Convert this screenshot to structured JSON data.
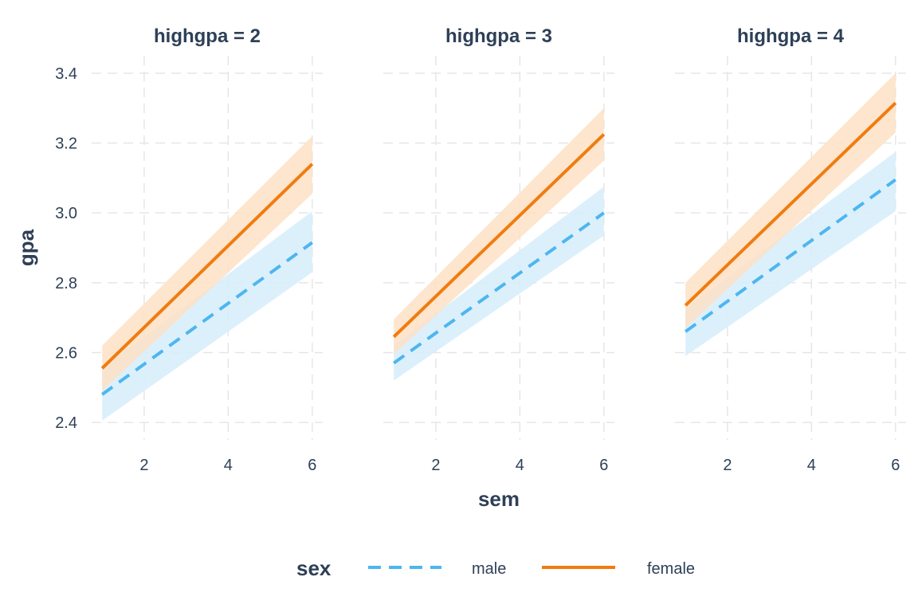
{
  "chart_data": {
    "type": "line",
    "facet_variable": "highgpa",
    "xlabel": "sem",
    "ylabel": "gpa",
    "xlim": [
      0.75,
      6.25
    ],
    "ylim": [
      2.35,
      3.45
    ],
    "x_ticks": [
      2,
      4,
      6
    ],
    "y_ticks": [
      2.4,
      2.6,
      2.8,
      3.0,
      3.2,
      3.4
    ],
    "y_tick_labels": [
      "2.4",
      "2.6",
      "2.8",
      "3.0",
      "3.2",
      "3.4"
    ],
    "grid": true,
    "legend": {
      "title": "sex",
      "placement": "bottom",
      "entries": [
        {
          "name": "male",
          "color": "#4db6f0",
          "style": "dashed"
        },
        {
          "name": "female",
          "color": "#f07c0f",
          "style": "solid"
        }
      ]
    },
    "colors": {
      "male_line": "#4db6f0",
      "male_band": "#d6edfb",
      "female_line": "#f07c0f",
      "female_band": "#fde0c6",
      "grid": "#e6e6e6",
      "text": "#2e4057"
    },
    "panels": [
      {
        "title": "highgpa = 2",
        "series": [
          {
            "name": "male",
            "x": [
              1,
              6
            ],
            "y": [
              2.48,
              2.915
            ],
            "lower": [
              2.405,
              2.83
            ],
            "upper": [
              2.555,
              3.005
            ]
          },
          {
            "name": "female",
            "x": [
              1,
              6
            ],
            "y": [
              2.555,
              3.14
            ],
            "lower": [
              2.49,
              3.055
            ],
            "upper": [
              2.62,
              3.22
            ]
          }
        ]
      },
      {
        "title": "highgpa = 3",
        "series": [
          {
            "name": "male",
            "x": [
              1,
              6
            ],
            "y": [
              2.57,
              3.0
            ],
            "lower": [
              2.52,
              2.935
            ],
            "upper": [
              2.62,
              3.075
            ]
          },
          {
            "name": "female",
            "x": [
              1,
              6
            ],
            "y": [
              2.645,
              3.225
            ],
            "lower": [
              2.595,
              3.15
            ],
            "upper": [
              2.695,
              3.3
            ]
          }
        ]
      },
      {
        "title": "highgpa = 4",
        "series": [
          {
            "name": "male",
            "x": [
              1,
              6
            ],
            "y": [
              2.66,
              3.095
            ],
            "lower": [
              2.59,
              3.005
            ],
            "upper": [
              2.725,
              3.175
            ]
          },
          {
            "name": "female",
            "x": [
              1,
              6
            ],
            "y": [
              2.735,
              3.315
            ],
            "lower": [
              2.67,
              3.23
            ],
            "upper": [
              2.8,
              3.4
            ]
          }
        ]
      }
    ]
  }
}
